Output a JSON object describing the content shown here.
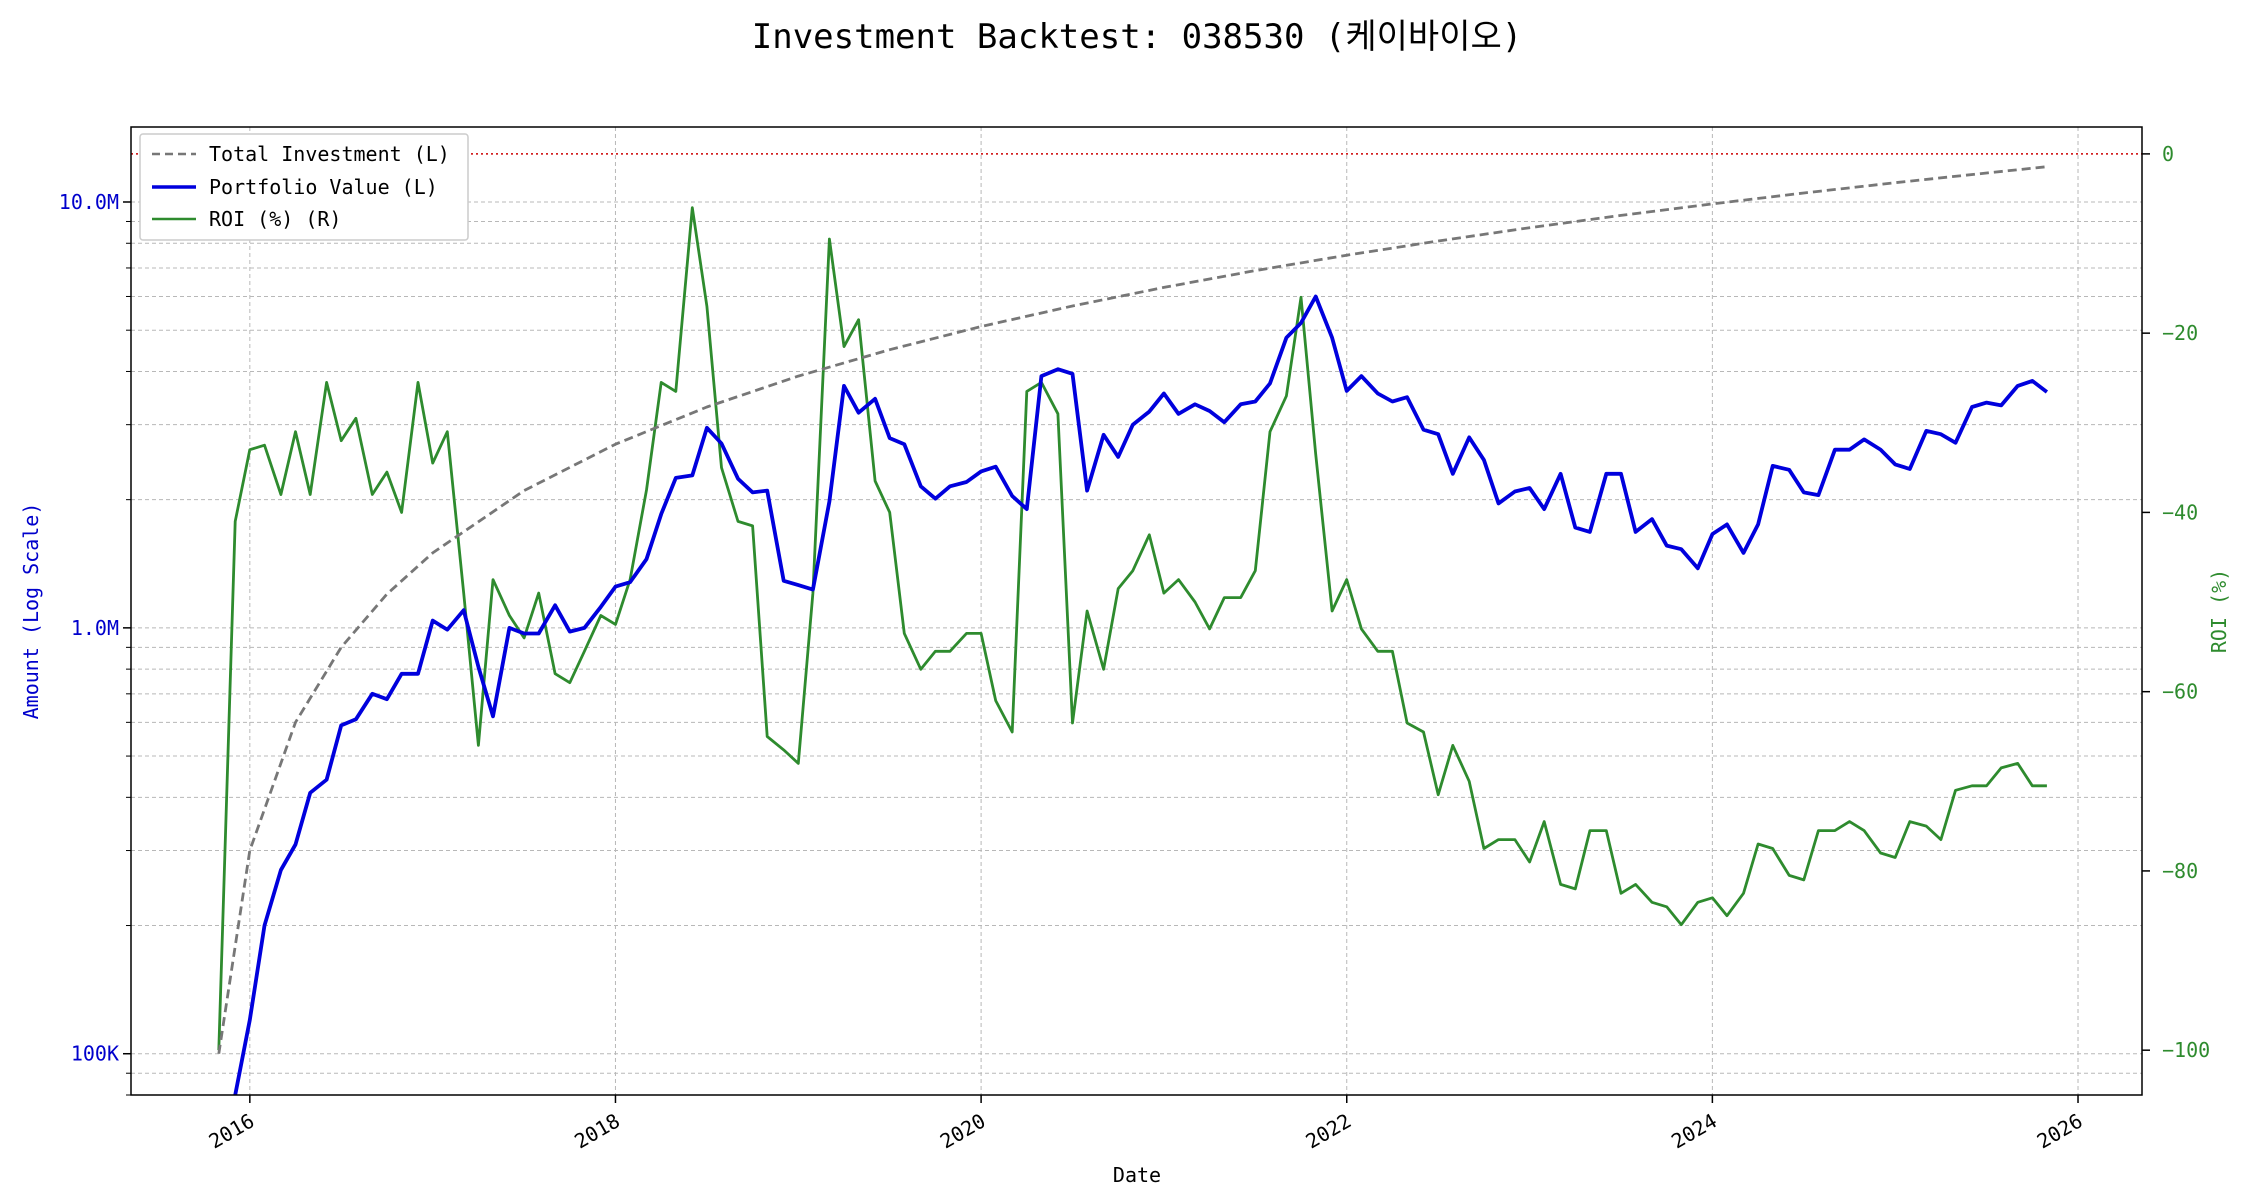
{
  "chart_data": {
    "type": "line",
    "title": "Investment Backtest: 038530 (케이바이오)",
    "xlabel": "Date",
    "ylabel_left": "Amount (Log Scale)",
    "ylabel_right": "ROI (%)",
    "left_axis_scale": "log",
    "ylim_left": [
      80000,
      15000000
    ],
    "ylim_right": [
      -105,
      3
    ],
    "xlim": [
      2015.35,
      2026.35
    ],
    "x_ticks": [
      2016,
      2018,
      2020,
      2022,
      2024,
      2026
    ],
    "x_tick_labels": [
      "2016",
      "2018",
      "2020",
      "2022",
      "2024",
      "2026"
    ],
    "y_left_ticks": [
      100000,
      1000000,
      10000000
    ],
    "y_left_tick_labels": [
      "100K",
      "1.0M",
      "10.0M"
    ],
    "y_right_ticks": [
      0,
      -20,
      -40,
      -60,
      -80,
      -100
    ],
    "y_right_tick_labels": [
      "0",
      "−20",
      "−40",
      "−60",
      "−80",
      "−100"
    ],
    "zero_line": {
      "value": 0,
      "axis": "right",
      "color": "#cc0000",
      "style": "dotted"
    },
    "grid": true,
    "legend_position": "top-left",
    "colors": {
      "total_investment": "#777777",
      "portfolio": "#0000dd",
      "roi": "#2e8b2e",
      "left_axis_text": "#0000cc",
      "right_axis_text": "#2e8b2e"
    },
    "series": [
      {
        "name": "Total Investment (L)",
        "axis": "left",
        "style": "dashed",
        "x": [
          2015.83,
          2016.0,
          2016.25,
          2016.5,
          2016.75,
          2017.0,
          2017.5,
          2018.0,
          2018.5,
          2019.0,
          2019.5,
          2020.0,
          2020.5,
          2021.0,
          2021.5,
          2022.0,
          2022.5,
          2023.0,
          2023.5,
          2024.0,
          2024.5,
          2025.0,
          2025.5,
          2025.83
        ],
        "values": [
          100000,
          300000,
          600000,
          900000,
          1200000,
          1500000,
          2100000,
          2700000,
          3300000,
          3900000,
          4500000,
          5100000,
          5700000,
          6300000,
          6900000,
          7500000,
          8100000,
          8700000,
          9300000,
          9900000,
          10500000,
          11100000,
          11700000,
          12100000
        ]
      },
      {
        "name": "Portfolio Value (L)",
        "axis": "left",
        "style": "solid",
        "x": [
          2015.92,
          2016.0,
          2016.08,
          2016.17,
          2016.25,
          2016.33,
          2016.42,
          2016.5,
          2016.58,
          2016.67,
          2016.75,
          2016.83,
          2016.92,
          2017.0,
          2017.08,
          2017.17,
          2017.25,
          2017.33,
          2017.42,
          2017.5,
          2017.58,
          2017.67,
          2017.75,
          2017.83,
          2017.92,
          2018.0,
          2018.08,
          2018.17,
          2018.25,
          2018.33,
          2018.42,
          2018.5,
          2018.58,
          2018.67,
          2018.75,
          2018.83,
          2018.92,
          2019.0,
          2019.08,
          2019.17,
          2019.25,
          2019.33,
          2019.42,
          2019.5,
          2019.58,
          2019.67,
          2019.75,
          2019.83,
          2019.92,
          2020.0,
          2020.08,
          2020.17,
          2020.25,
          2020.33,
          2020.42,
          2020.5,
          2020.58,
          2020.67,
          2020.75,
          2020.83,
          2020.92,
          2021.0,
          2021.08,
          2021.17,
          2021.25,
          2021.33,
          2021.42,
          2021.5,
          2021.58,
          2021.67,
          2021.75,
          2021.83,
          2021.92,
          2022.0,
          2022.08,
          2022.17,
          2022.25,
          2022.33,
          2022.42,
          2022.5,
          2022.58,
          2022.67,
          2022.75,
          2022.83,
          2022.92,
          2023.0,
          2023.08,
          2023.17,
          2023.25,
          2023.33,
          2023.42,
          2023.5,
          2023.58,
          2023.67,
          2023.75,
          2023.83,
          2023.92,
          2024.0,
          2024.08,
          2024.17,
          2024.25,
          2024.33,
          2024.42,
          2024.5,
          2024.58,
          2024.67,
          2024.75,
          2024.83,
          2024.92,
          2025.0,
          2025.08,
          2025.17,
          2025.25,
          2025.33,
          2025.42,
          2025.5,
          2025.58,
          2025.67,
          2025.75,
          2025.83
        ],
        "values": [
          80000,
          120000,
          200000,
          270000,
          310000,
          410000,
          440000,
          590000,
          610000,
          700000,
          680000,
          780000,
          780000,
          1040000,
          990000,
          1100000,
          810000,
          620000,
          1000000,
          970000,
          970000,
          1130000,
          980000,
          1000000,
          1120000,
          1250000,
          1280000,
          1450000,
          1850000,
          2250000,
          2280000,
          2950000,
          2710000,
          2240000,
          2080000,
          2100000,
          1290000,
          1260000,
          1230000,
          1980000,
          3700000,
          3200000,
          3450000,
          2790000,
          2700000,
          2150000,
          2010000,
          2150000,
          2200000,
          2330000,
          2390000,
          2040000,
          1900000,
          3900000,
          4050000,
          3950000,
          2100000,
          2840000,
          2520000,
          3000000,
          3220000,
          3550000,
          3180000,
          3350000,
          3230000,
          3040000,
          3350000,
          3400000,
          3750000,
          4800000,
          5200000,
          6000000,
          4800000,
          3600000,
          3900000,
          3550000,
          3400000,
          3480000,
          2920000,
          2850000,
          2300000,
          2800000,
          2480000,
          1960000,
          2090000,
          2130000,
          1900000,
          2300000,
          1720000,
          1680000,
          2300000,
          2300000,
          1680000,
          1800000,
          1560000,
          1530000,
          1380000,
          1660000,
          1750000,
          1500000,
          1750000,
          2400000,
          2350000,
          2080000,
          2050000,
          2620000,
          2620000,
          2770000,
          2620000,
          2420000,
          2360000,
          2900000,
          2850000,
          2720000,
          3300000,
          3380000,
          3330000,
          3700000,
          3800000,
          3580000
        ]
      },
      {
        "name": "ROI (%) (R)",
        "axis": "right",
        "style": "solid",
        "x": [
          2015.83,
          2015.92,
          2016.0,
          2016.08,
          2016.17,
          2016.25,
          2016.33,
          2016.42,
          2016.5,
          2016.58,
          2016.67,
          2016.75,
          2016.83,
          2016.92,
          2017.0,
          2017.08,
          2017.17,
          2017.25,
          2017.33,
          2017.42,
          2017.5,
          2017.58,
          2017.67,
          2017.75,
          2017.83,
          2017.92,
          2018.0,
          2018.08,
          2018.17,
          2018.25,
          2018.33,
          2018.42,
          2018.5,
          2018.58,
          2018.67,
          2018.75,
          2018.83,
          2018.92,
          2019.0,
          2019.08,
          2019.17,
          2019.25,
          2019.33,
          2019.42,
          2019.5,
          2019.58,
          2019.67,
          2019.75,
          2019.83,
          2019.92,
          2020.0,
          2020.08,
          2020.17,
          2020.25,
          2020.33,
          2020.42,
          2020.5,
          2020.58,
          2020.67,
          2020.75,
          2020.83,
          2020.92,
          2021.0,
          2021.08,
          2021.17,
          2021.25,
          2021.33,
          2021.42,
          2021.5,
          2021.58,
          2021.67,
          2021.75,
          2021.83,
          2021.92,
          2022.0,
          2022.08,
          2022.17,
          2022.25,
          2022.33,
          2022.42,
          2022.5,
          2022.58,
          2022.67,
          2022.75,
          2022.83,
          2022.92,
          2023.0,
          2023.08,
          2023.17,
          2023.25,
          2023.33,
          2023.42,
          2023.5,
          2023.58,
          2023.67,
          2023.75,
          2023.83,
          2023.92,
          2024.0,
          2024.08,
          2024.17,
          2024.25,
          2024.33,
          2024.42,
          2024.5,
          2024.58,
          2024.67,
          2024.75,
          2024.83,
          2024.92,
          2025.0,
          2025.08,
          2025.17,
          2025.25,
          2025.33,
          2025.42,
          2025.5,
          2025.58,
          2025.67,
          2025.75,
          2025.83
        ],
        "values": [
          -100,
          -41,
          -33,
          -32.5,
          -38,
          -31,
          -38,
          -25.5,
          -32,
          -29.5,
          -38,
          -35.5,
          -40,
          -25.5,
          -34.5,
          -31,
          -49,
          -66,
          -47.5,
          -51.5,
          -54,
          -49,
          -58,
          -59,
          -55.5,
          -51.5,
          -52.5,
          -47.5,
          -37.5,
          -25.5,
          -26.5,
          -6,
          -17,
          -35,
          -41,
          -41.5,
          -65,
          -66.5,
          -68,
          -49,
          -9.5,
          -21.5,
          -18.5,
          -36.5,
          -40,
          -53.5,
          -57.5,
          -55.5,
          -55.5,
          -53.5,
          -53.5,
          -61,
          -64.5,
          -26.5,
          -25.5,
          -29,
          -63.5,
          -51,
          -57.5,
          -48.5,
          -46.5,
          -42.5,
          -49,
          -47.5,
          -50,
          -53,
          -49.5,
          -49.5,
          -46.5,
          -31,
          -27,
          -16,
          -33.5,
          -51,
          -47.5,
          -53,
          -55.5,
          -55.5,
          -63.5,
          -64.5,
          -71.5,
          -66,
          -70,
          -77.5,
          -76.5,
          -76.5,
          -79,
          -74.5,
          -81.5,
          -82,
          -75.5,
          -75.5,
          -82.5,
          -81.5,
          -83.5,
          -84,
          -86,
          -83.5,
          -83,
          -85,
          -82.5,
          -77,
          -77.5,
          -80.5,
          -81,
          -75.5,
          -75.5,
          -74.5,
          -75.5,
          -78,
          -78.5,
          -74.5,
          -75,
          -76.5,
          -71,
          -70.5,
          -70.5,
          -68.5,
          -68,
          -70.5,
          -70.5
        ]
      }
    ]
  }
}
